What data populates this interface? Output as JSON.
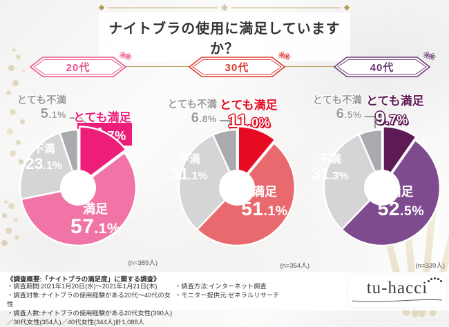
{
  "header": {
    "title": "ナイトブラの使用に満足していますか？"
  },
  "icons": {
    "ornament_center": "❈",
    "badge_sprig": "❀❀"
  },
  "chart_data": [
    {
      "type": "pie",
      "title": "20代",
      "n_label": "(n=389人)",
      "accent": "#e9508c",
      "labels": [
        "とても満足",
        "満足",
        "不満",
        "とても不満"
      ],
      "values": [
        14.7,
        57.1,
        23.1,
        5.1
      ],
      "display_values": [
        "14.7%",
        "57.1%",
        "23.1%",
        "5.1%"
      ],
      "colors": [
        "#ed1e79",
        "#f075a6",
        "#d5d4d6",
        "#aaa9ad"
      ],
      "legend_position": "on-slices",
      "donut": true
    },
    {
      "type": "pie",
      "title": "30代",
      "n_label": "(n=354人)",
      "accent": "#dd3a30",
      "labels": [
        "とても満足",
        "満足",
        "不満",
        "とても不満"
      ],
      "values": [
        11.0,
        51.1,
        31.1,
        6.8
      ],
      "display_values": [
        "11.0%",
        "51.1%",
        "31.1%",
        "6.8%"
      ],
      "colors": [
        "#e60b23",
        "#e96a6e",
        "#d5d4d6",
        "#aaa9ad"
      ],
      "legend_position": "on-slices",
      "donut": true
    },
    {
      "type": "pie",
      "title": "40代",
      "n_label": "(n=339人)",
      "accent": "#6a3a74",
      "labels": [
        "とても満足",
        "満足",
        "不満",
        "とても不満"
      ],
      "values": [
        9.7,
        52.5,
        31.3,
        6.5
      ],
      "display_values": [
        "9.7%",
        "52.5%",
        "31.3%",
        "6.5%"
      ],
      "colors": [
        "#5d1a54",
        "#7d4b8e",
        "#d5d4d6",
        "#aaa9ad"
      ],
      "legend_position": "on-slices",
      "donut": true
    }
  ],
  "footer": {
    "overview": "《調査概要:「ナイトブラの満足度」に関する調査》",
    "left_items": [
      "・調査期間:2021年1月20日(水)～2021年1月21日(木)",
      "・調査対象:ナイトブラの使用経験がある20代～40代の女性",
      "・調査人数:ナイトブラの使用経験がある20代女性(390人)／30代女性(354人)／40代女性(344人)計1,088人"
    ],
    "right_items": [
      "・調査方法:インターネット調査",
      "・モニター提供元:ゼネラルリサーチ"
    ],
    "logo_text": "tu-hacci"
  }
}
